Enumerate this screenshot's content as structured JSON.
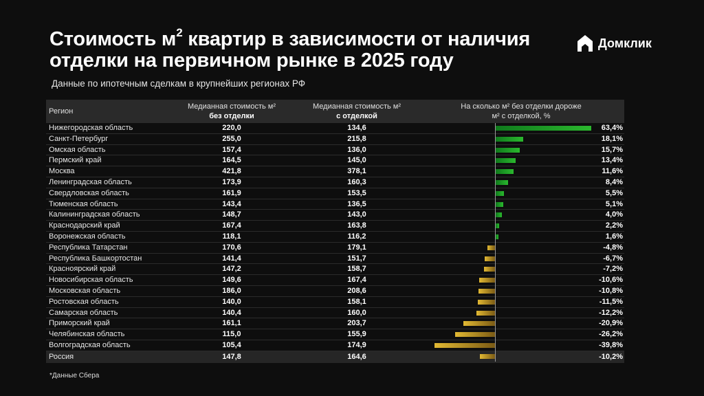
{
  "header": {
    "title_part1": "Стоимость м",
    "title_sup": "2",
    "title_part2": " квартир в зависимости от наличия отделки на первичном рынке в 2025 году",
    "subtitle": "Данные по ипотечным сделкам в крупнейших регионах РФ"
  },
  "logo": {
    "text": "Домклик",
    "icon": "home-logo-icon"
  },
  "colors": {
    "positive": "#2bb82e",
    "negative": "#e2b933",
    "background": "#0e0e0e",
    "header_bg": "#2a2a2a"
  },
  "table": {
    "col_region": "Регион",
    "col1_line1": "Медианная стоимость м²",
    "col1_line2": "без отделки",
    "col2_line1": "Медианная стоимость м²",
    "col2_line2": "с отделкой",
    "col3_line1": "На сколько м² без отделки дороже",
    "col3_line2": "м² с отделкой, %"
  },
  "chart_data": {
    "type": "table",
    "columns": [
      "Регион",
      "Медианная стоимость м² без отделки",
      "Медианная стоимость м² с отделкой",
      "На сколько м² без отделки дороже м² с отделкой, %"
    ],
    "rows": [
      {
        "region": "Нижегородская область",
        "v1": "220,0",
        "v2": "134,6",
        "pct_label": "63,4%",
        "pct": 63.4
      },
      {
        "region": "Санкт-Петербург",
        "v1": "255,0",
        "v2": "215,8",
        "pct_label": "18,1%",
        "pct": 18.1
      },
      {
        "region": "Омская область",
        "v1": "157,4",
        "v2": "136,0",
        "pct_label": "15,7%",
        "pct": 15.7
      },
      {
        "region": "Пермский край",
        "v1": "164,5",
        "v2": "145,0",
        "pct_label": "13,4%",
        "pct": 13.4
      },
      {
        "region": "Москва",
        "v1": "421,8",
        "v2": "378,1",
        "pct_label": "11,6%",
        "pct": 11.6
      },
      {
        "region": "Ленинградская область",
        "v1": "173,9",
        "v2": "160,3",
        "pct_label": "8,4%",
        "pct": 8.4
      },
      {
        "region": "Свердловская область",
        "v1": "161,9",
        "v2": "153,5",
        "pct_label": "5,5%",
        "pct": 5.5
      },
      {
        "region": "Тюменская область",
        "v1": "143,4",
        "v2": "136,5",
        "pct_label": "5,1%",
        "pct": 5.1
      },
      {
        "region": "Калининградская область",
        "v1": "148,7",
        "v2": "143,0",
        "pct_label": "4,0%",
        "pct": 4.0
      },
      {
        "region": "Краснодарский край",
        "v1": "167,4",
        "v2": "163,8",
        "pct_label": "2,2%",
        "pct": 2.2
      },
      {
        "region": "Воронежская область",
        "v1": "118,1",
        "v2": "116,2",
        "pct_label": "1,6%",
        "pct": 1.6
      },
      {
        "region": "Республика Татарстан",
        "v1": "170,6",
        "v2": "179,1",
        "pct_label": "-4,8%",
        "pct": -4.8
      },
      {
        "region": "Республика Башкортостан",
        "v1": "141,4",
        "v2": "151,7",
        "pct_label": "-6,7%",
        "pct": -6.7
      },
      {
        "region": "Красноярский край",
        "v1": "147,2",
        "v2": "158,7",
        "pct_label": "-7,2%",
        "pct": -7.2
      },
      {
        "region": "Новосибирская область",
        "v1": "149,6",
        "v2": "167,4",
        "pct_label": "-10,6%",
        "pct": -10.6
      },
      {
        "region": "Московская область",
        "v1": "186,0",
        "v2": "208,6",
        "pct_label": "-10,8%",
        "pct": -10.8
      },
      {
        "region": "Ростовская область",
        "v1": "140,0",
        "v2": "158,1",
        "pct_label": "-11,5%",
        "pct": -11.5
      },
      {
        "region": "Самарская область",
        "v1": "140,4",
        "v2": "160,0",
        "pct_label": "-12,2%",
        "pct": -12.2
      },
      {
        "region": "Приморский край",
        "v1": "161,1",
        "v2": "203,7",
        "pct_label": "-20,9%",
        "pct": -20.9
      },
      {
        "region": "Челябинская область",
        "v1": "115,0",
        "v2": "155,9",
        "pct_label": "-26,2%",
        "pct": -26.2
      },
      {
        "region": "Волгоградская область",
        "v1": "105,4",
        "v2": "174,9",
        "pct_label": "-39,8%",
        "pct": -39.8
      }
    ],
    "total": {
      "region": "Россия",
      "v1": "147,8",
      "v2": "164,6",
      "pct_label": "-10,2%",
      "pct": -10.2
    }
  },
  "footnote": "*Данные Сбера"
}
